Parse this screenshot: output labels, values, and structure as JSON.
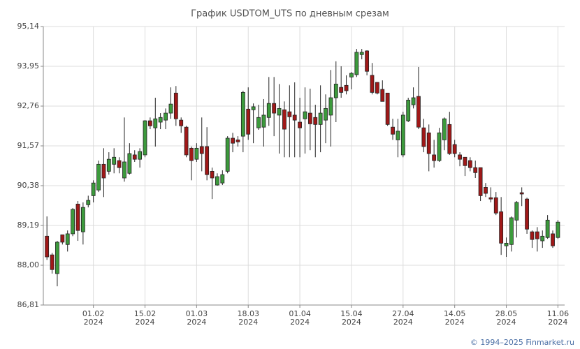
{
  "chart_data": {
    "type": "candlestick",
    "title": "График USDTOM_UTS по дневным срезам",
    "footer": "© 1994–2025 Finmarket.ru",
    "up_color": "#3c9a3c",
    "down_color": "#a01818",
    "grid": true,
    "ylim": [
      86.81,
      95.14
    ],
    "yticks": [
      {
        "value": 86.81,
        "label": "86,81"
      },
      {
        "value": 88.0,
        "label": "88,00"
      },
      {
        "value": 89.19,
        "label": "89,19"
      },
      {
        "value": 90.38,
        "label": "90,38"
      },
      {
        "value": 91.57,
        "label": "91,57"
      },
      {
        "value": 92.76,
        "label": "92,76"
      },
      {
        "value": 93.95,
        "label": "93,95"
      },
      {
        "value": 95.14,
        "label": "95,14"
      }
    ],
    "xlim": [
      -0.7,
      100.3
    ],
    "xticks": [
      {
        "value": 9,
        "label": [
          "01.02",
          "2024"
        ]
      },
      {
        "value": 19,
        "label": [
          "15.02",
          "2024"
        ]
      },
      {
        "value": 29,
        "label": [
          "01.03",
          "2024"
        ]
      },
      {
        "value": 39,
        "label": [
          "18.03",
          "2024"
        ]
      },
      {
        "value": 49,
        "label": [
          "01.04",
          "2024"
        ]
      },
      {
        "value": 59,
        "label": [
          "15.04",
          "2024"
        ]
      },
      {
        "value": 69,
        "label": [
          "27.04",
          "2024"
        ]
      },
      {
        "value": 79,
        "label": [
          "14.05",
          "2024"
        ]
      },
      {
        "value": 89,
        "label": [
          "28.05",
          "2024"
        ]
      },
      {
        "value": 99,
        "label": [
          "11.06",
          "2024"
        ]
      }
    ],
    "open": [
      88.87,
      88.31,
      87.75,
      88.91,
      88.62,
      88.94,
      89.83,
      89.0,
      89.81,
      90.08,
      90.25,
      91.02,
      90.81,
      91.02,
      91.13,
      90.61,
      90.75,
      91.3,
      91.17,
      91.3,
      92.32,
      92.11,
      92.28,
      92.34,
      92.55,
      93.15,
      92.34,
      92.13,
      91.5,
      91.17,
      91.55,
      91.55,
      90.81,
      90.4,
      90.46,
      90.81,
      91.8,
      91.75,
      91.86,
      92.67,
      92.65,
      92.11,
      92.13,
      92.42,
      92.84,
      92.49,
      92.65,
      92.59,
      92.49,
      92.28,
      92.38,
      92.55,
      92.42,
      92.21,
      92.34,
      92.49,
      93.01,
      93.32,
      93.38,
      93.63,
      93.7,
      94.3,
      94.41,
      93.68,
      93.47,
      93.26,
      93.15,
      92.13,
      91.75,
      91.3,
      92.32,
      92.8,
      93.05,
      92.11,
      91.96,
      91.3,
      91.13,
      91.75,
      92.21,
      91.61,
      91.3,
      91.23,
      91.13,
      90.92,
      90.92,
      90.33,
      90.02,
      90.02,
      89.6,
      88.58,
      88.62,
      89.35,
      90.17,
      89.98,
      89.0,
      89.0,
      88.73,
      88.83,
      88.94,
      88.83
    ],
    "high": [
      89.46,
      88.37,
      88.73,
      88.91,
      89.04,
      89.71,
      89.92,
      89.88,
      90.08,
      90.54,
      91.13,
      91.5,
      91.38,
      91.5,
      91.23,
      92.42,
      91.65,
      91.44,
      91.5,
      92.34,
      92.42,
      93.01,
      92.55,
      92.69,
      93.32,
      93.36,
      92.42,
      92.17,
      91.55,
      91.65,
      92.42,
      92.13,
      90.92,
      90.75,
      90.84,
      91.86,
      91.96,
      91.86,
      93.22,
      93.32,
      92.84,
      92.8,
      92.97,
      93.63,
      93.63,
      93.42,
      92.9,
      93.38,
      93.47,
      93.01,
      93.32,
      93.28,
      92.8,
      93.38,
      93.11,
      93.84,
      94.1,
      93.95,
      93.68,
      93.78,
      94.47,
      94.47,
      94.43,
      94.05,
      93.47,
      93.53,
      93.15,
      92.38,
      92.38,
      92.59,
      93.01,
      93.32,
      93.93,
      92.38,
      92.21,
      91.75,
      92.11,
      92.42,
      92.59,
      91.75,
      91.38,
      91.23,
      91.23,
      91.13,
      90.92,
      90.46,
      90.33,
      90.19,
      90.04,
      88.83,
      89.46,
      89.92,
      90.33,
      90.02,
      89.04,
      89.14,
      89.04,
      89.5,
      89.04,
      89.35
    ],
    "low": [
      88.16,
      87.75,
      87.37,
      88.62,
      88.41,
      88.87,
      88.73,
      88.62,
      89.73,
      89.88,
      90.19,
      90.04,
      90.71,
      90.75,
      90.75,
      90.5,
      90.71,
      91.09,
      90.92,
      91.23,
      92.07,
      91.55,
      92.07,
      92.07,
      92.38,
      92.17,
      91.96,
      91.23,
      90.54,
      91.09,
      90.81,
      90.54,
      89.98,
      90.38,
      90.4,
      90.75,
      91.38,
      91.55,
      91.38,
      91.75,
      91.65,
      92.05,
      91.55,
      92.17,
      91.86,
      91.34,
      91.23,
      91.23,
      91.23,
      91.23,
      91.34,
      91.44,
      91.23,
      91.38,
      91.65,
      91.55,
      92.28,
      93.01,
      93.11,
      93.26,
      93.63,
      94.16,
      93.68,
      93.11,
      93.11,
      92.9,
      92.17,
      91.75,
      91.23,
      91.23,
      92.28,
      92.69,
      92.07,
      91.38,
      90.81,
      90.92,
      91.09,
      91.44,
      91.3,
      91.23,
      90.96,
      90.67,
      90.81,
      90.61,
      89.92,
      90.04,
      89.88,
      89.5,
      88.31,
      88.25,
      88.41,
      88.83,
      89.77,
      88.94,
      88.52,
      88.41,
      88.52,
      88.79,
      88.52,
      88.79
    ],
    "close": [
      88.25,
      87.87,
      88.69,
      88.69,
      88.94,
      89.67,
      89.04,
      89.73,
      89.94,
      90.46,
      91.02,
      90.61,
      91.17,
      91.23,
      90.92,
      91.09,
      91.34,
      91.17,
      91.4,
      92.32,
      92.17,
      92.38,
      92.42,
      92.55,
      92.82,
      92.38,
      92.17,
      91.3,
      91.13,
      91.5,
      91.34,
      90.71,
      90.61,
      90.65,
      90.71,
      91.8,
      91.65,
      91.69,
      93.17,
      91.92,
      92.74,
      92.42,
      92.49,
      92.84,
      92.55,
      92.69,
      92.07,
      92.44,
      92.34,
      92.11,
      92.59,
      92.23,
      92.21,
      92.55,
      92.69,
      93.01,
      93.42,
      93.17,
      93.22,
      93.74,
      94.37,
      94.37,
      93.8,
      93.17,
      93.15,
      92.9,
      92.21,
      91.92,
      92.01,
      92.49,
      92.94,
      93.01,
      92.13,
      91.55,
      91.34,
      91.13,
      91.96,
      92.38,
      91.34,
      91.34,
      91.17,
      90.98,
      90.92,
      90.77,
      90.08,
      90.15,
      89.98,
      89.56,
      88.66,
      88.66,
      89.42,
      89.88,
      90.13,
      89.08,
      88.77,
      88.79,
      88.87,
      89.35,
      88.58,
      89.29
    ]
  }
}
